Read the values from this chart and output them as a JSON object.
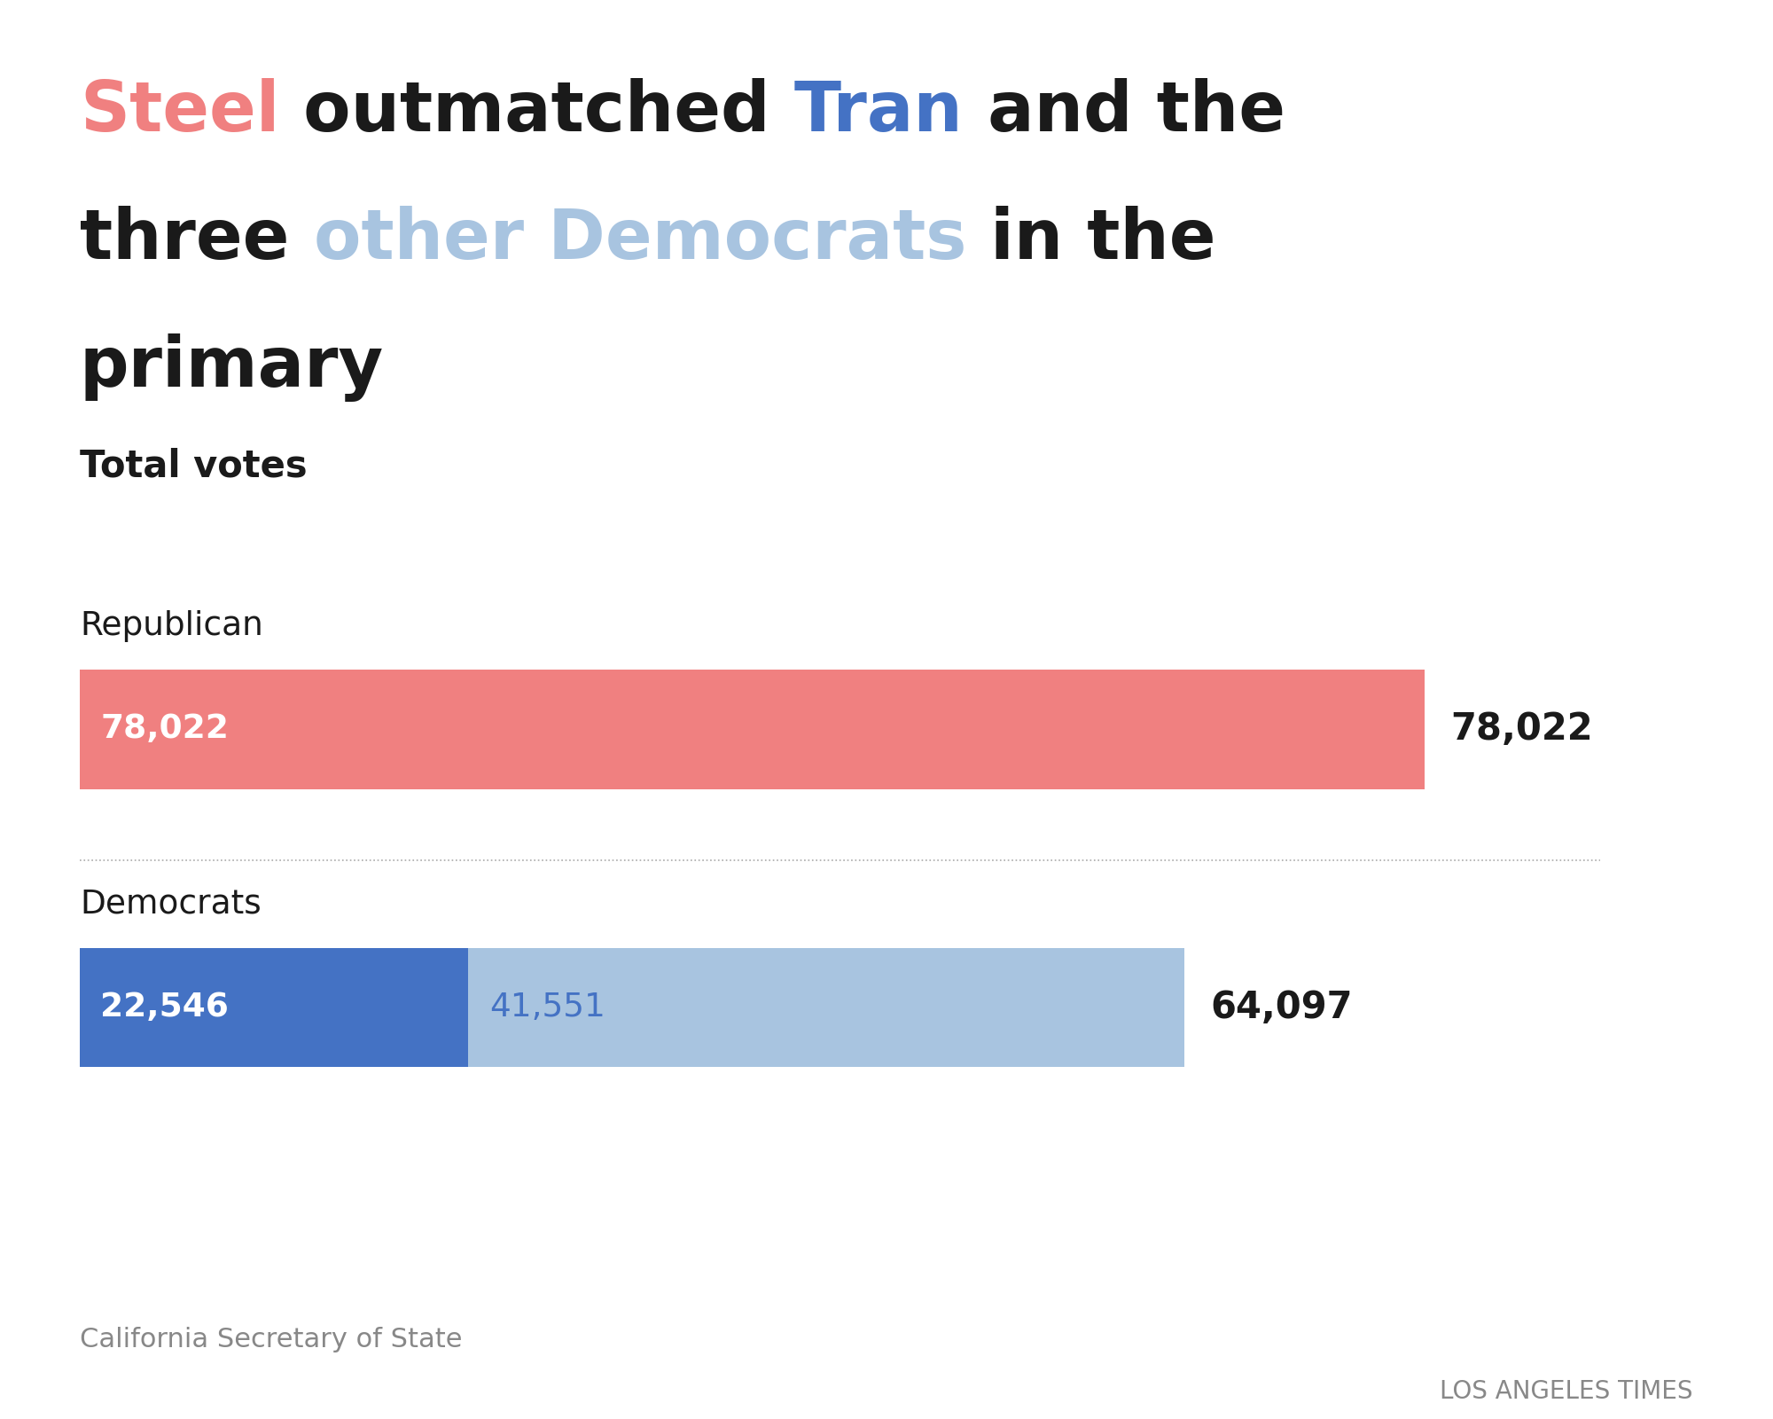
{
  "title_line1": [
    {
      "text": "Steel",
      "color": "#f08080"
    },
    {
      "text": " outmatched ",
      "color": "#1a1a1a"
    },
    {
      "text": "Tran",
      "color": "#4472c4"
    },
    {
      "text": " and the",
      "color": "#1a1a1a"
    }
  ],
  "title_line2": [
    {
      "text": "three ",
      "color": "#1a1a1a"
    },
    {
      "text": "other Democrats",
      "color": "#a8c4e0"
    },
    {
      "text": " in the",
      "color": "#1a1a1a"
    }
  ],
  "title_line3": [
    {
      "text": "primary",
      "color": "#1a1a1a"
    }
  ],
  "subtitle": "Total votes",
  "rep_label": "Republican",
  "dem_label": "Democrats",
  "rep_value": 78022,
  "rep_color": "#f08080",
  "tran_value": 22546,
  "tran_color": "#4472c4",
  "other_dem_value": 41551,
  "other_dem_color": "#a8c4e0",
  "dem_total": 64097,
  "rep_label_inside": "78,022",
  "rep_label_outside": "78,022",
  "tran_label_inside": "22,546",
  "other_dem_label_inside": "41,551",
  "dem_label_outside": "64,097",
  "source": "California Secretary of State",
  "attribution": "LOS ANGELES TIMES",
  "bg_color": "#ffffff",
  "max_value": 90000
}
